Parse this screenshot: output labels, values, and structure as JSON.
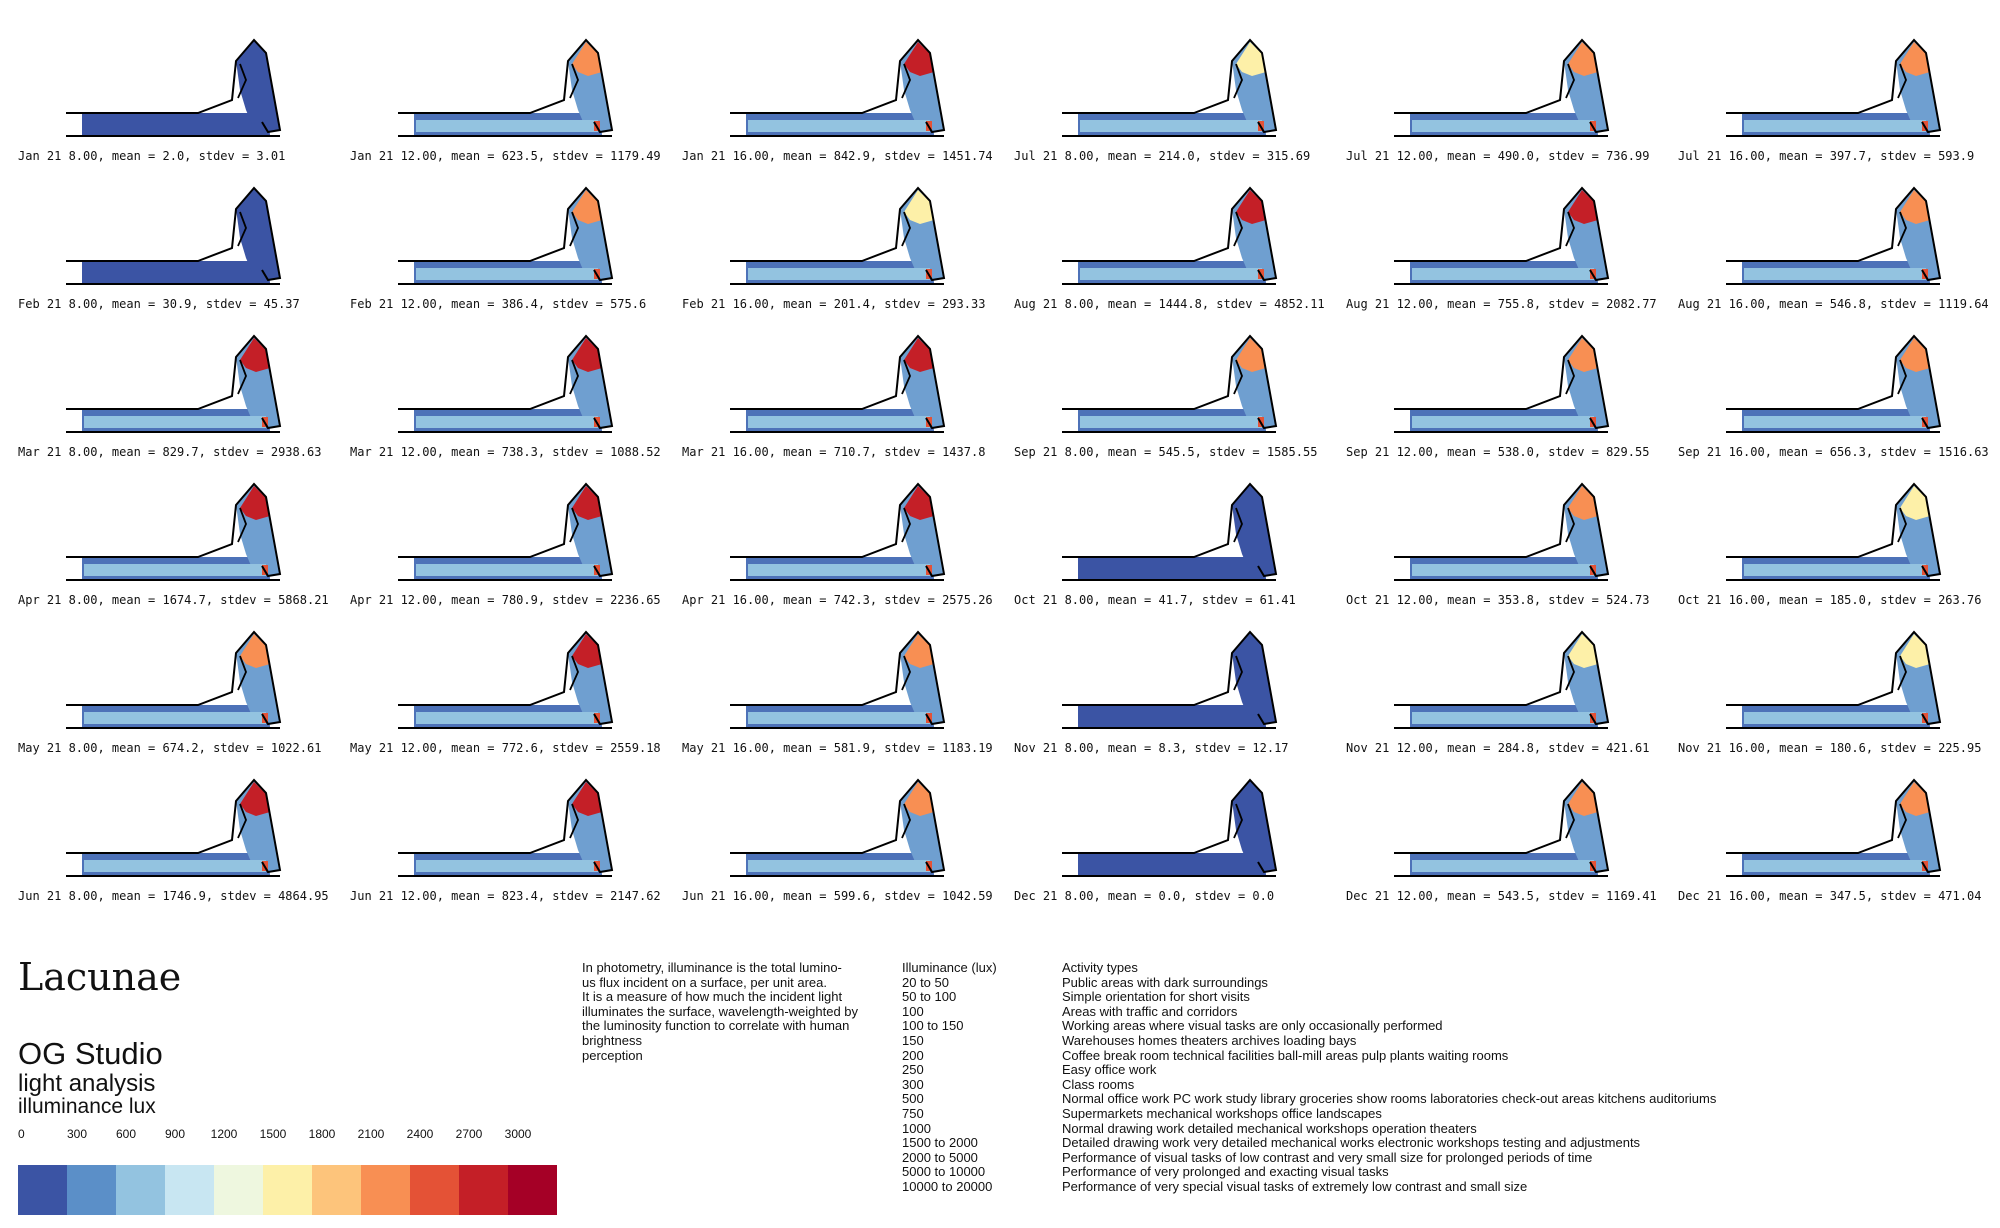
{
  "cells": [
    "Jan 21 8.00, mean = 2.0, stdev = 3.01",
    "Jan 21 12.00, mean = 623.5, stdev = 1179.49",
    "Jan 21 16.00, mean = 842.9, stdev = 1451.74",
    "Jul 21 8.00, mean = 214.0, stdev = 315.69",
    "Jul 21 12.00, mean = 490.0, stdev = 736.99",
    "Jul 21 16.00, mean = 397.7, stdev = 593.9",
    "Feb 21 8.00, mean = 30.9, stdev = 45.37",
    "Feb 21 12.00, mean = 386.4, stdev = 575.6",
    "Feb 21 16.00, mean = 201.4, stdev = 293.33",
    "Aug 21 8.00, mean = 1444.8, stdev = 4852.11",
    "Aug 21 12.00, mean = 755.8, stdev = 2082.77",
    "Aug 21 16.00, mean = 546.8, stdev = 1119.64",
    "Mar 21 8.00, mean = 829.7, stdev = 2938.63",
    "Mar 21 12.00, mean = 738.3, stdev = 1088.52",
    "Mar 21 16.00, mean = 710.7, stdev = 1437.8",
    "Sep 21 8.00, mean = 545.5, stdev = 1585.55",
    "Sep 21 12.00, mean = 538.0, stdev = 829.55",
    "Sep 21 16.00, mean = 656.3, stdev = 1516.63",
    "Apr 21 8.00, mean = 1674.7, stdev = 5868.21",
    "Apr 21 12.00, mean = 780.9, stdev = 2236.65",
    "Apr 21 16.00, mean = 742.3, stdev = 2575.26",
    "Oct 21 8.00, mean = 41.7, stdev = 61.41",
    "Oct 21 12.00, mean = 353.8, stdev = 524.73",
    "Oct 21 16.00, mean = 185.0, stdev = 263.76",
    "May 21 8.00, mean = 674.2, stdev = 1022.61",
    "May 21 12.00, mean = 772.6, stdev = 2559.18",
    "May 21 16.00, mean = 581.9, stdev = 1183.19",
    "Nov 21 8.00, mean = 8.3, stdev = 12.17",
    "Nov 21 12.00, mean = 284.8, stdev = 421.61",
    "Nov 21 16.00, mean = 180.6, stdev = 225.95",
    "Jun 21 8.00, mean = 1746.9, stdev = 4864.95",
    "Jun 21 12.00, mean = 823.4, stdev = 2147.62",
    "Jun 21 16.00, mean = 599.6, stdev = 1042.59",
    "Dec 21 8.00, mean = 0.0, stdev = 0.0",
    "Dec 21 12.00, mean = 543.5, stdev = 1169.41",
    "Dec 21 16.00, mean = 347.5, stdev = 471.04"
  ],
  "brand": {
    "title": "Lacunae",
    "studio": "OG Studio",
    "subtitle_1": "light analysis",
    "subtitle_2": "illuminance lux"
  },
  "scale": {
    "ticks": [
      "0",
      "300",
      "600",
      "900",
      "1200",
      "1500",
      "1800",
      "2100",
      "2400",
      "2700",
      "3000"
    ],
    "colors": [
      "#3b54a4",
      "#5b8fc8",
      "#93c3e0",
      "#c8e6f2",
      "#eef7df",
      "#fdf0a8",
      "#fdc47b",
      "#f88f53",
      "#e45236",
      "#c41f27",
      "#a50026"
    ]
  },
  "description": [
    "In photometry, illuminance is the total lumino-",
    "us flux incident on a surface, per unit area.",
    "It is a measure of how much the incident light",
    "illuminates the surface, wavelength-weighted by",
    "the luminosity function to correlate with human",
    "brightness",
    "perception"
  ],
  "table": {
    "header_lux": "Illuminance (lux)",
    "header_activity": "Activity types",
    "rows": [
      [
        "20 to 50",
        "Public areas with dark surroundings"
      ],
      [
        "50 to 100",
        "Simple orientation for short visits"
      ],
      [
        "100",
        "Areas with traffic and corridors"
      ],
      [
        "100 to 150",
        "Working areas where visual tasks are only occasionally performed"
      ],
      [
        "150",
        "Warehouses homes theaters archives loading bays"
      ],
      [
        "200",
        "Coffee break room technical facilities ball-mill areas pulp plants waiting rooms"
      ],
      [
        "250",
        "Easy office work"
      ],
      [
        "300",
        "Class rooms"
      ],
      [
        "500",
        "Normal office work PC work study library groceries show rooms laboratories check-out areas kitchens auditoriums"
      ],
      [
        "750",
        "Supermarkets mechanical workshops office landscapes"
      ],
      [
        "1000",
        "Normal drawing work detailed mechanical workshops operation theaters"
      ],
      [
        "1500 to 2000",
        "Detailed drawing work very detailed mechanical works electronic workshops testing and adjustments"
      ],
      [
        "2000 to 5000",
        "Performance of visual tasks of low contrast  and very small size for prolonged periods of time"
      ],
      [
        "5000 to 10000",
        "Performance of very prolonged and exacting visual tasks"
      ],
      [
        "10000 to 20000",
        "Performance of very special visual tasks of extremely low contrast and small size"
      ]
    ]
  }
}
